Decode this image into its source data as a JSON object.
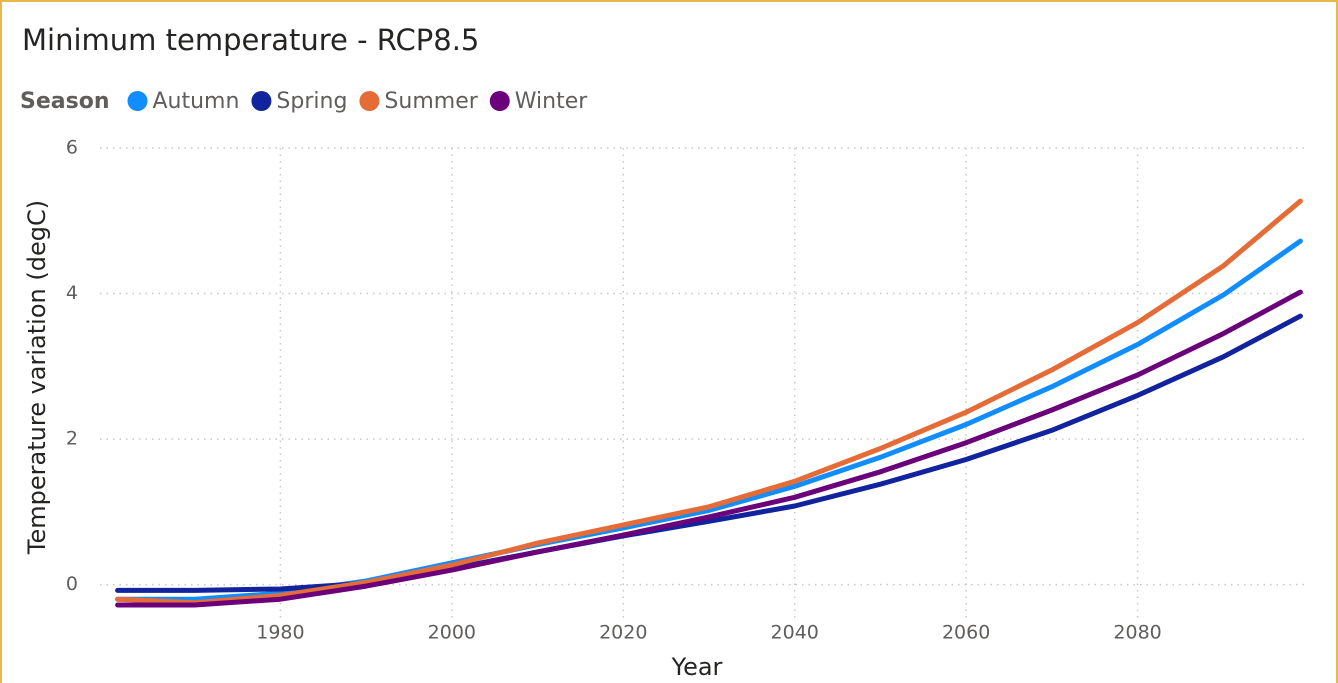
{
  "chart_data": {
    "type": "line",
    "title": "Minimum temperature - RCP8.5",
    "legend_title": "Season",
    "x_label": "Year",
    "y_label": "Temperature variation (degC)",
    "x": [
      1961,
      1970,
      1980,
      1990,
      2000,
      2010,
      2020,
      2030,
      2040,
      2050,
      2060,
      2070,
      2080,
      2090,
      2099
    ],
    "series": [
      {
        "name": "Autumn",
        "color": "#118DFF",
        "values": [
          -0.2,
          -0.2,
          -0.12,
          0.05,
          0.3,
          0.55,
          0.78,
          1.02,
          1.35,
          1.75,
          2.2,
          2.72,
          3.3,
          3.98,
          4.72
        ]
      },
      {
        "name": "Spring",
        "color": "#12239E",
        "values": [
          -0.08,
          -0.08,
          -0.06,
          0.02,
          0.22,
          0.45,
          0.67,
          0.87,
          1.08,
          1.38,
          1.72,
          2.12,
          2.6,
          3.13,
          3.69
        ]
      },
      {
        "name": "Summer",
        "color": "#E66C37",
        "values": [
          -0.2,
          -0.25,
          -0.15,
          0.03,
          0.27,
          0.57,
          0.82,
          1.07,
          1.42,
          1.87,
          2.37,
          2.95,
          3.6,
          4.38,
          5.27
        ]
      },
      {
        "name": "Winter",
        "color": "#6B007B",
        "values": [
          -0.28,
          -0.28,
          -0.2,
          -0.02,
          0.2,
          0.45,
          0.68,
          0.93,
          1.2,
          1.55,
          1.95,
          2.4,
          2.88,
          3.45,
          4.02
        ]
      }
    ],
    "xlim": [
      1960,
      2100
    ],
    "xticks": [
      1980,
      2000,
      2020,
      2040,
      2060,
      2080
    ],
    "ylim": [
      -0.5,
      6
    ],
    "yticks": [
      0,
      2,
      4,
      6
    ],
    "grid": true
  }
}
